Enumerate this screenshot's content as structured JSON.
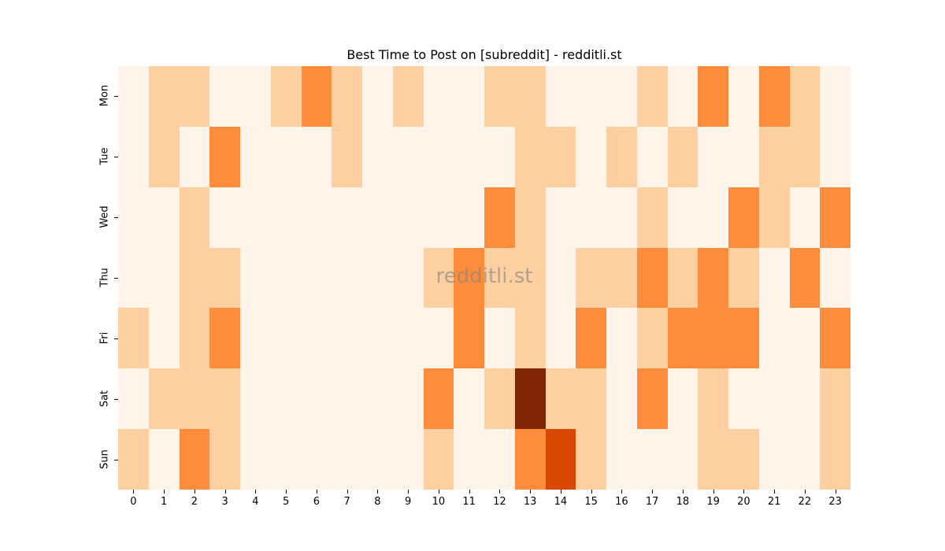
{
  "chart_data": {
    "type": "heatmap",
    "title": "Best Time to Post on [subreddit] - redditli.st",
    "xlabel": "",
    "ylabel": "",
    "x_categories": [
      "0",
      "1",
      "2",
      "3",
      "4",
      "5",
      "6",
      "7",
      "8",
      "9",
      "10",
      "11",
      "12",
      "13",
      "14",
      "15",
      "16",
      "17",
      "18",
      "19",
      "20",
      "21",
      "22",
      "23"
    ],
    "y_categories": [
      "Mon",
      "Tue",
      "Wed",
      "Thu",
      "Fri",
      "Sat",
      "Sun"
    ],
    "colorscale": [
      "#fef4e9",
      "#fdd0a2",
      "#fd8d3c",
      "#d94801",
      "#7f2704"
    ],
    "values": [
      [
        0,
        1,
        1,
        0,
        0,
        1,
        2,
        1,
        0,
        1,
        0,
        0,
        1,
        1,
        0,
        0,
        0,
        1,
        0,
        2,
        0,
        2,
        1,
        0
      ],
      [
        0,
        1,
        0,
        2,
        0,
        0,
        0,
        1,
        0,
        0,
        0,
        0,
        0,
        1,
        1,
        0,
        1,
        0,
        1,
        0,
        0,
        1,
        1,
        0
      ],
      [
        0,
        0,
        1,
        0,
        0,
        0,
        0,
        0,
        0,
        0,
        0,
        0,
        2,
        1,
        0,
        0,
        0,
        1,
        0,
        0,
        2,
        1,
        0,
        2
      ],
      [
        0,
        0,
        1,
        1,
        0,
        0,
        0,
        0,
        0,
        0,
        1,
        2,
        1,
        1,
        0,
        1,
        1,
        2,
        1,
        2,
        1,
        0,
        2,
        0
      ],
      [
        1,
        0,
        1,
        2,
        0,
        0,
        0,
        0,
        0,
        0,
        0,
        2,
        0,
        1,
        0,
        2,
        0,
        1,
        2,
        2,
        2,
        0,
        0,
        2
      ],
      [
        0,
        1,
        1,
        1,
        0,
        0,
        0,
        0,
        0,
        0,
        2,
        0,
        1,
        4,
        1,
        1,
        0,
        2,
        0,
        1,
        0,
        0,
        0,
        1
      ],
      [
        1,
        0,
        2,
        1,
        0,
        0,
        0,
        0,
        0,
        0,
        1,
        0,
        0,
        2,
        3,
        1,
        0,
        0,
        0,
        1,
        1,
        0,
        0,
        1
      ]
    ],
    "watermark": "redditli.st",
    "grid": false,
    "legend": "none"
  }
}
